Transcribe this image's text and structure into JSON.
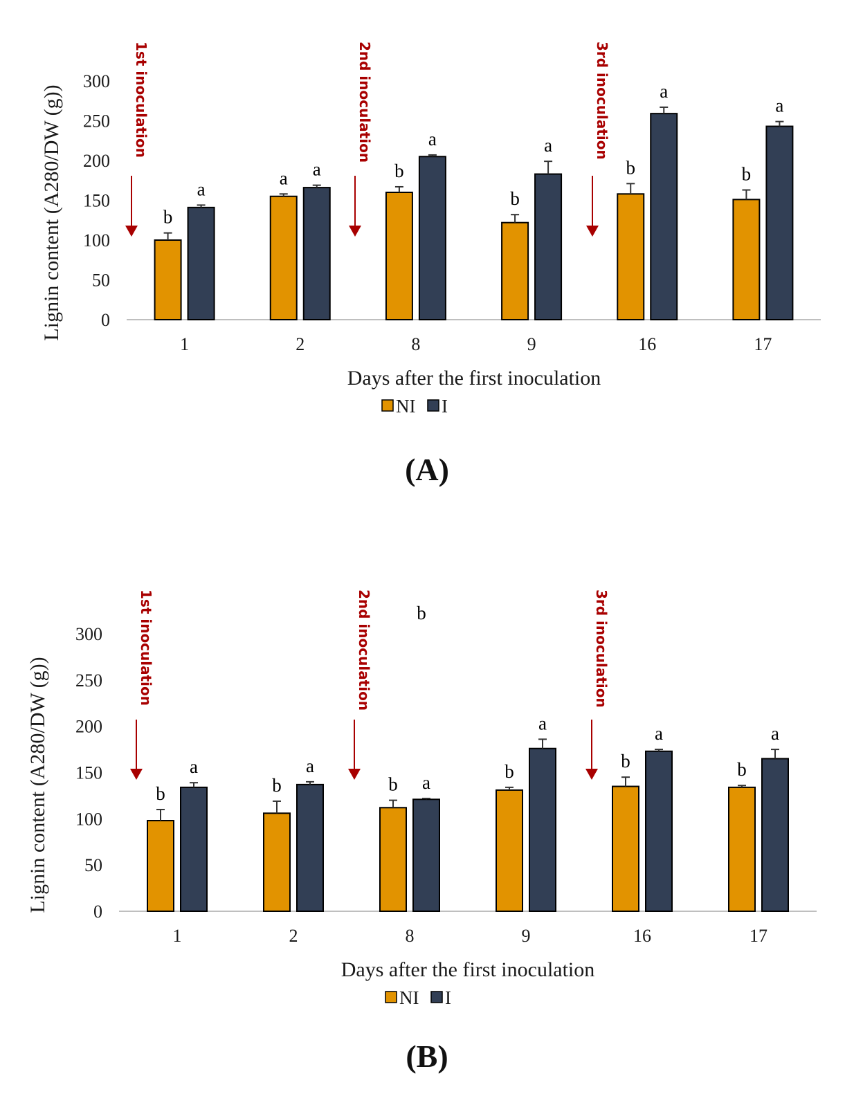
{
  "chart_data": [
    {
      "type": "bar",
      "panel_label": "(A)",
      "xlabel": "Days after the first inoculation",
      "ylabel": "Lignin content (A280/DW (g))",
      "ylim": [
        0,
        300
      ],
      "yticks": [
        0,
        50,
        100,
        150,
        200,
        250,
        300
      ],
      "categories": [
        "1",
        "2",
        "8",
        "9",
        "16",
        "17"
      ],
      "series": [
        {
          "name": "NI",
          "color": "#e29300",
          "values": [
            100,
            155,
            160,
            122,
            158,
            151
          ],
          "errors": [
            9,
            3,
            7,
            10,
            13,
            12
          ],
          "letters": [
            "b",
            "a",
            "b",
            "b",
            "b",
            "b"
          ]
        },
        {
          "name": "I",
          "color": "#323f55",
          "values": [
            141,
            166,
            205,
            183,
            259,
            243
          ],
          "errors": [
            3,
            3,
            2,
            16,
            8,
            6
          ],
          "letters": [
            "a",
            "a",
            "a",
            "a",
            "a",
            "a"
          ]
        }
      ],
      "annotations": [
        "1st inoculation",
        "2nd inoculation",
        "3rd inoculation"
      ],
      "legend_position": "bottom"
    },
    {
      "type": "bar",
      "panel_label": "(B)",
      "xlabel": "Days after the first inoculation",
      "ylabel": "Lignin content (A280/DW (g))",
      "ylim": [
        0,
        300
      ],
      "yticks": [
        0,
        50,
        100,
        150,
        200,
        250,
        300
      ],
      "categories": [
        "1",
        "2",
        "8",
        "9",
        "16",
        "17"
      ],
      "series": [
        {
          "name": "NI",
          "color": "#e29300",
          "values": [
            98,
            106,
            112,
            131,
            135,
            134
          ],
          "errors": [
            12,
            13,
            8,
            3,
            10,
            2
          ],
          "letters": [
            "b",
            "b",
            "b",
            "b",
            "b",
            "b"
          ]
        },
        {
          "name": "I",
          "color": "#323f55",
          "values": [
            134,
            137,
            121,
            176,
            173,
            165
          ],
          "errors": [
            5,
            3,
            1,
            10,
            2,
            10
          ],
          "letters": [
            "a",
            "a",
            "a",
            "a",
            "a",
            "a"
          ]
        }
      ],
      "annotations": [
        "1st inoculation",
        "2nd inoculation",
        "3rd inoculation"
      ],
      "stray_letter": "b",
      "legend_position": "bottom"
    }
  ]
}
